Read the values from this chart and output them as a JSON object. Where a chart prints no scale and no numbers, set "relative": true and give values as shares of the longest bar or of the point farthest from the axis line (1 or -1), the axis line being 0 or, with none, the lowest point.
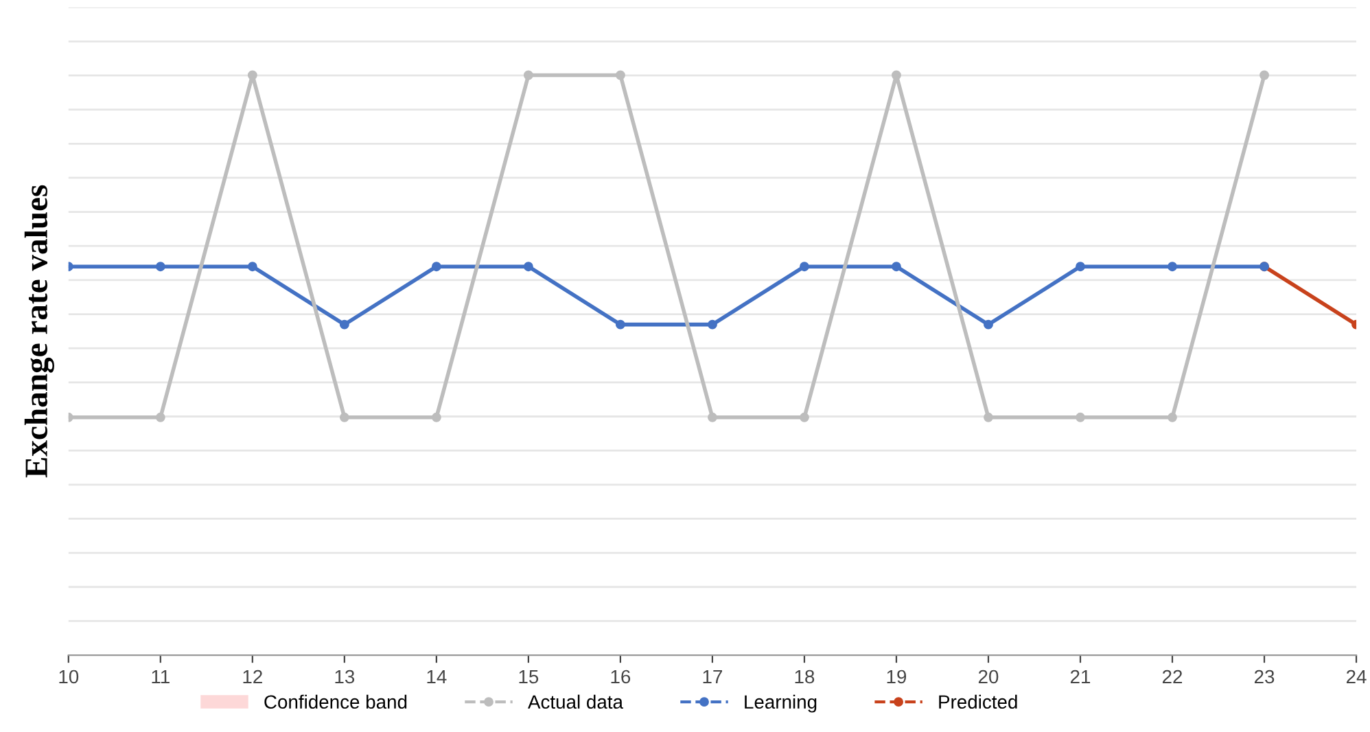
{
  "chart_data": {
    "type": "line",
    "ylabel": "Exchange rate values",
    "relative": true,
    "xlim": [
      10,
      24
    ],
    "xticks": [
      10,
      11,
      12,
      13,
      14,
      15,
      16,
      17,
      18,
      19,
      20,
      21,
      22,
      23,
      24
    ],
    "grid": "y",
    "legend": "bottom",
    "marker": "circle",
    "line_style": "solid",
    "series": [
      {
        "name": "Confidence band",
        "type": "area",
        "color": "#fdd8d8"
      },
      {
        "name": "Actual data",
        "color": "#bdbdbd",
        "x": [
          10,
          11,
          12,
          13,
          14,
          15,
          16,
          17,
          18,
          19,
          20,
          21,
          22,
          23
        ],
        "values": [
          0.41,
          0.41,
          1,
          0.41,
          0.41,
          1,
          1,
          0.41,
          0.41,
          1,
          0.41,
          0.41,
          0.41,
          1
        ]
      },
      {
        "name": "Learning",
        "color": "#4472c4",
        "x": [
          10,
          11,
          12,
          13,
          14,
          15,
          16,
          17,
          18,
          19,
          20,
          21,
          22,
          23
        ],
        "values": [
          0.67,
          0.67,
          0.67,
          0.57,
          0.67,
          0.67,
          0.57,
          0.57,
          0.67,
          0.67,
          0.57,
          0.67,
          0.67,
          0.67
        ]
      },
      {
        "name": "Predicted",
        "color": "#c8421c",
        "x": [
          23,
          24
        ],
        "values": [
          0.67,
          0.57
        ]
      }
    ]
  }
}
